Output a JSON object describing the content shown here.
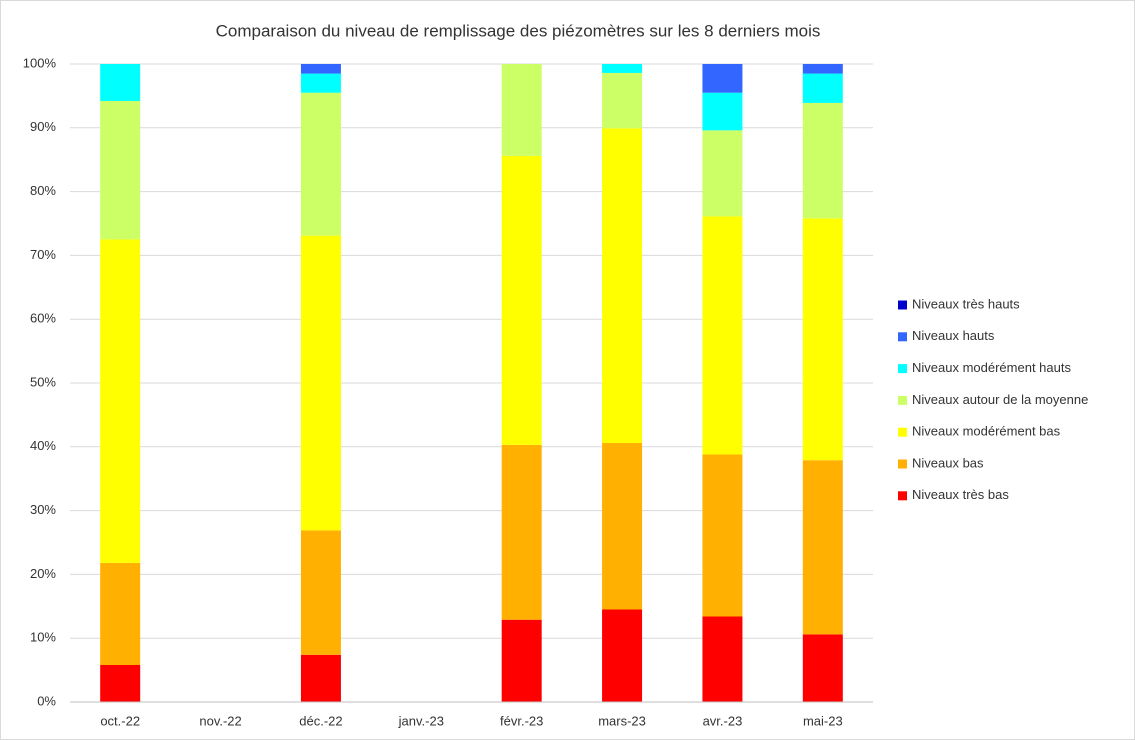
{
  "chart_data": {
    "type": "stacked_bar",
    "title": "Comparaison du niveau de remplissage des piézomètres sur les 8 derniers mois",
    "categories": [
      "oct.-22",
      "nov.-22",
      "déc.-22",
      "janv.-23",
      "févr.-23",
      "mars-23",
      "avr.-23",
      "mai-23"
    ],
    "series": [
      {
        "name": "Niveaux très bas",
        "color": "#ff0000",
        "values": [
          5.8,
          null,
          7.4,
          null,
          12.9,
          14.5,
          13.4,
          10.6
        ]
      },
      {
        "name": "Niveaux bas",
        "color": "#ffb000",
        "values": [
          16,
          null,
          19.5,
          null,
          27.4,
          26.1,
          25.4,
          27.3
        ]
      },
      {
        "name": "Niveaux modérément bas",
        "color": "#ffff00",
        "values": [
          50.7,
          null,
          46.2,
          null,
          45.3,
          49.3,
          37.3,
          37.9
        ]
      },
      {
        "name": "Niveaux autour de la moyenne",
        "color": "#ccff66",
        "values": [
          21.7,
          null,
          22.4,
          null,
          14.4,
          8.7,
          13.5,
          18.1
        ]
      },
      {
        "name": "Niveaux modérément hauts",
        "color": "#00ffff",
        "values": [
          5.8,
          null,
          3.0,
          null,
          0,
          1.4,
          5.9,
          4.6
        ]
      },
      {
        "name": "Niveaux hauts",
        "color": "#3366ff",
        "values": [
          0,
          null,
          1.5,
          null,
          0,
          0,
          4.5,
          1.5
        ]
      },
      {
        "name": "Niveaux très hauts",
        "color": "#0000cc",
        "values": [
          0,
          null,
          0,
          null,
          0,
          0,
          0,
          0
        ]
      }
    ],
    "ylim": [
      0,
      100
    ],
    "yticks": [
      {
        "value": 0,
        "label": "0%"
      },
      {
        "value": 10,
        "label": "10%"
      },
      {
        "value": 20,
        "label": "20%"
      },
      {
        "value": 30,
        "label": "30%"
      },
      {
        "value": 40,
        "label": "40%"
      },
      {
        "value": 50,
        "label": "50%"
      },
      {
        "value": 60,
        "label": "60%"
      },
      {
        "value": 70,
        "label": "70%"
      },
      {
        "value": 80,
        "label": "80%"
      },
      {
        "value": 90,
        "label": "90%"
      },
      {
        "value": 100,
        "label": "100%"
      }
    ],
    "grid": true,
    "legend": "right"
  }
}
